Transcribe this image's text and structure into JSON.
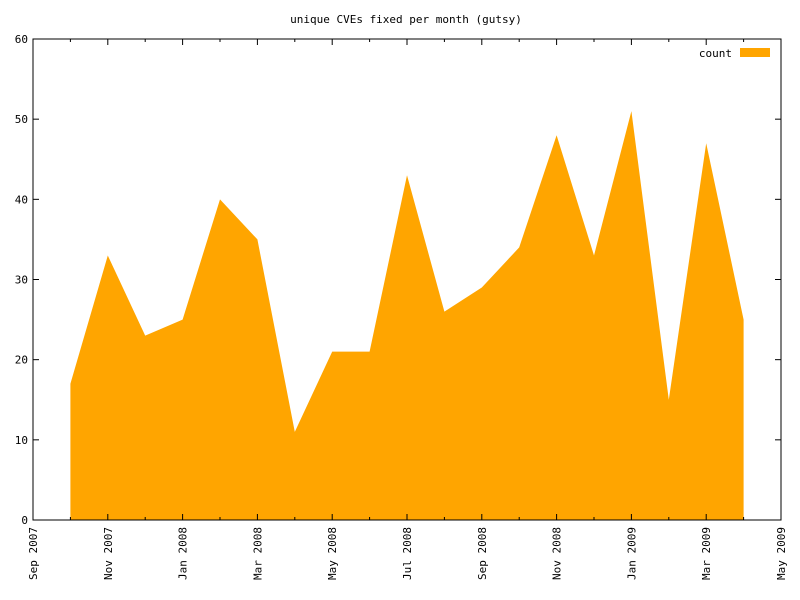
{
  "chart_data": {
    "type": "area",
    "title": "unique CVEs fixed per month (gutsy)",
    "xlabel": "",
    "ylabel": "",
    "x_tick_labels": [
      "Sep 2007",
      "Nov 2007",
      "Jan 2008",
      "Mar 2008",
      "May 2008",
      "Jul 2008",
      "Sep 2008",
      "Nov 2008",
      "Jan 2009",
      "Mar 2009",
      "May 2009"
    ],
    "x_range": [
      "2007-09",
      "2009-05"
    ],
    "ylim": [
      0,
      60
    ],
    "y_ticks": [
      0,
      10,
      20,
      30,
      40,
      50,
      60
    ],
    "legend_position": "top-right",
    "series": [
      {
        "name": "count",
        "color": "#ffa500",
        "x": [
          "2007-10",
          "2007-11",
          "2007-12",
          "2008-01",
          "2008-02",
          "2008-03",
          "2008-04",
          "2008-05",
          "2008-06",
          "2008-07",
          "2008-08",
          "2008-09",
          "2008-10",
          "2008-11",
          "2008-12",
          "2009-01",
          "2009-02",
          "2009-03",
          "2009-04"
        ],
        "values": [
          17,
          33,
          23,
          25,
          40,
          35,
          11,
          21,
          21,
          43,
          26,
          29,
          34,
          48,
          33,
          51,
          15,
          47,
          25
        ]
      }
    ]
  }
}
